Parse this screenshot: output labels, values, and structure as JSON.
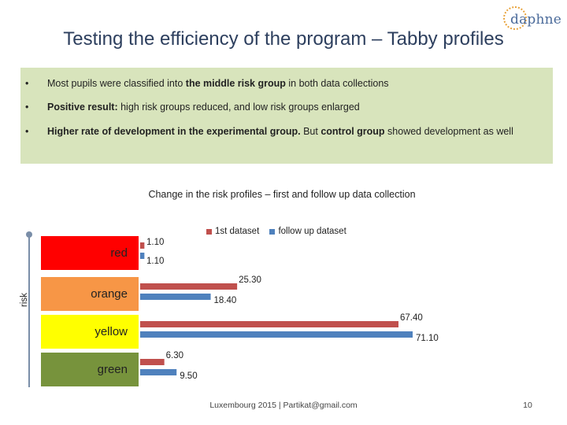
{
  "logo": {
    "text": "daphne"
  },
  "title": "Testing the efficiency of the program – Tabby profiles",
  "bullets": [
    {
      "bullet": "•",
      "segments": [
        {
          "text": "Most pupils were classified into ",
          "bold": false
        },
        {
          "text": "the middle risk group",
          "bold": true
        },
        {
          "text": " in both data collections",
          "bold": false
        }
      ]
    },
    {
      "bullet": "•",
      "segments": [
        {
          "text": "Positive result:",
          "bold": true
        },
        {
          "text": " high risk groups reduced, and low risk groups enlarged",
          "bold": false
        }
      ]
    },
    {
      "bullet": "•",
      "segments": [
        {
          "text": "Higher rate of development in the experimental group.",
          "bold": true
        },
        {
          "text": " But ",
          "bold": false
        },
        {
          "text": "control group",
          "bold": true
        },
        {
          "text": " showed development as well",
          "bold": false
        }
      ]
    }
  ],
  "chart_data": {
    "type": "bar",
    "orientation": "horizontal",
    "title": "Change in the risk profiles – first and follow up data collection",
    "ylabel": "risk",
    "categories": [
      "red",
      "orange",
      "yellow",
      "green"
    ],
    "category_colors": [
      "#ff0000",
      "#f79646",
      "#ffff00",
      "#77933c"
    ],
    "series": [
      {
        "name": "1st dataset",
        "color": "#c0504d",
        "values": [
          1.1,
          25.3,
          67.4,
          6.3
        ],
        "labels": [
          "1.10",
          "25.30",
          "67.40",
          "6.30"
        ]
      },
      {
        "name": "follow up dataset",
        "color": "#4f81bd",
        "values": [
          1.1,
          18.4,
          71.1,
          9.5
        ],
        "labels": [
          "1.10",
          "18.40",
          "71.10",
          "9.50"
        ]
      }
    ],
    "xlim": [
      0,
      71.1
    ],
    "legend_position": "top",
    "grid": false
  },
  "footer": "Luxembourg 2015 | Partikat@gmail.com",
  "page_number": "10"
}
